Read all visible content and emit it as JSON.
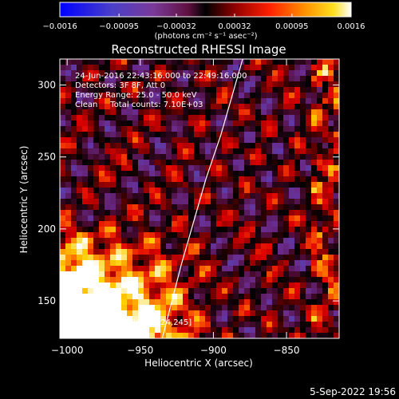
{
  "chart_data": {
    "type": "heatmap",
    "title": "Reconstructed RHESSI Image",
    "xlabel": "Heliocentric X (arcsec)",
    "ylabel": "Heliocentric Y (arcsec)",
    "xlim": [
      -1005,
      -814
    ],
    "ylim": [
      124,
      318
    ],
    "xticks": [
      -1000,
      -950,
      -900,
      -850
    ],
    "yticks": [
      150,
      200,
      250,
      300
    ],
    "xtick_labels": [
      "−1000",
      "−950",
      "−900",
      "−850"
    ],
    "ytick_labels": [
      "150",
      "200",
      "250",
      "300"
    ],
    "colorbar": {
      "range": [
        -0.0016,
        0.0016
      ],
      "ticks": [
        -0.0016,
        -0.00095,
        -0.00032,
        0.00032,
        0.00095,
        0.0016
      ],
      "tick_labels": [
        "−0.0016",
        "−0.00095",
        "−0.00032",
        "0.00032",
        "0.00095",
        "0.0016"
      ],
      "unit_label": "(photons cm⁻² s⁻¹ asec⁻²)",
      "colors": [
        "#0000ff",
        "#5a3fb0",
        "#6a2a8a",
        "#4a0a30",
        "#000000",
        "#8a0000",
        "#e00000",
        "#ff7000",
        "#ffd000",
        "#ffffff"
      ]
    },
    "annotations": {
      "time": "24-Jun-2016 22:43:16.000 to 22:49:16.000",
      "detectors": "Detectors: 3F 8F, Att 0",
      "energy": "Energy Range: 25.0 - 50.0 keV",
      "method": "Clean     Total counts: 7.10E+03",
      "peak": "Position of Peak = [-824,245]"
    },
    "limb_curve": [
      [
        -935,
        124
      ],
      [
        -922,
        175
      ],
      [
        -905,
        235
      ],
      [
        -895,
        265
      ],
      [
        -880,
        318
      ]
    ],
    "grid": false
  },
  "footer": {
    "date": "5-Sep-2022 19:56"
  }
}
